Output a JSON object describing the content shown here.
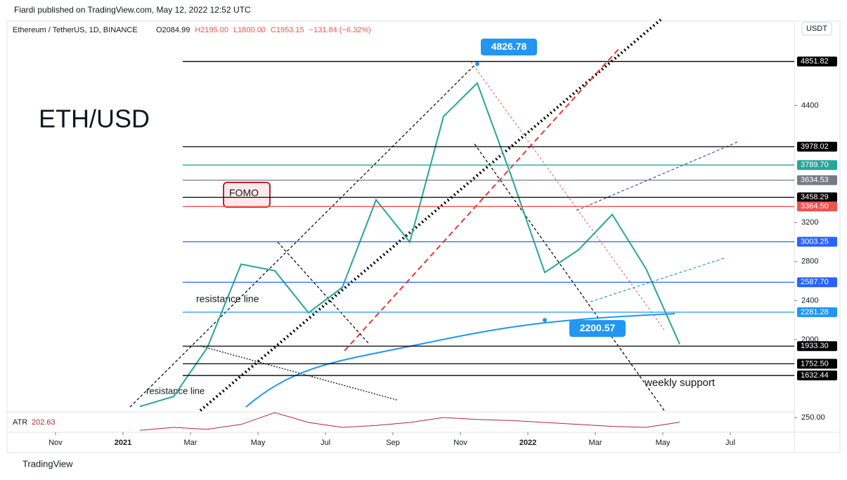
{
  "header": {
    "published": "Fiardi published on TradingView.com, May 12, 2022 12:52 UTC",
    "symbol": "Ethereum / TetherUS, 1D, BINANCE",
    "ohlc": [
      "O2084.99",
      "H2195.00",
      "L1800.00",
      "C1953.15",
      "−131.84 (−6.32%)"
    ],
    "currency": "USDT",
    "brand": "TradingView"
  },
  "chart_data": {
    "type": "line",
    "x": [
      "2021-01",
      "2021-02",
      "2021-03",
      "2021-04",
      "2021-05",
      "2021-06",
      "2021-07",
      "2021-08",
      "2021-09",
      "2021-10",
      "2021-11",
      "2021-12",
      "2022-01",
      "2022-02",
      "2022-03",
      "2022-04",
      "2022-05"
    ],
    "series": [
      {
        "name": "ETH/USDT",
        "color": "#26a69a",
        "values": [
          1314,
          1417,
          1918,
          2773,
          2706,
          2275,
          2536,
          3433,
          3000,
          4288,
          4630,
          3683,
          2688,
          2920,
          3283,
          2727,
          1953
        ]
      },
      {
        "name": "ATR",
        "axis": "y2",
        "color": "#b22833",
        "values": [
          120,
          150,
          130,
          180,
          300,
          200,
          150,
          170,
          200,
          250,
          230,
          220,
          200,
          180,
          160,
          150,
          203
        ]
      }
    ],
    "indicator_value": 202.63,
    "ylim": [
      1273,
      5266
    ],
    "yticks": [
      2000,
      2400,
      2800,
      3200,
      4400
    ],
    "y2lim": [
      100,
      300
    ],
    "y2ticks": [
      {
        "value": 250,
        "label": "250.00"
      }
    ],
    "xticks": [
      {
        "value": "2020-11",
        "label": "Nov"
      },
      {
        "value": "2021-01",
        "label": "2021"
      },
      {
        "value": "2021-03",
        "label": "Mar"
      },
      {
        "value": "2021-05",
        "label": "May"
      },
      {
        "value": "2021-07",
        "label": "Jul"
      },
      {
        "value": "2021-09",
        "label": "Sep"
      },
      {
        "value": "2021-11",
        "label": "Nov"
      },
      {
        "value": "2022-01",
        "label": "2022"
      },
      {
        "value": "2022-03",
        "label": "Mar"
      },
      {
        "value": "2022-05",
        "label": "May"
      },
      {
        "value": "2022-07",
        "label": "Jul"
      }
    ],
    "levels": [
      {
        "value": 4851.82,
        "label": "4851.82",
        "color": "#000000"
      },
      {
        "value": 3978.02,
        "label": "3978.02",
        "color": "#000000"
      },
      {
        "value": 3789.7,
        "label": "3789.70",
        "color": "#26a69a"
      },
      {
        "value": 3634.53,
        "label": "3634.53",
        "color": "#787b86"
      },
      {
        "value": 3458.29,
        "label": "3458.29",
        "color": "#000000"
      },
      {
        "value": 3364.5,
        "label": "3364.50",
        "color": "#ef5350"
      },
      {
        "value": 3003.25,
        "label": "3003.25",
        "color": "#2962ff"
      },
      {
        "value": 2587.7,
        "label": "2587.70",
        "color": "#2962ff"
      },
      {
        "value": 2281.28,
        "label": "2281.28",
        "color": "#2196f3"
      },
      {
        "value": 1933.3,
        "label": "1933.30",
        "color": "#000000"
      },
      {
        "value": 1752.5,
        "label": "1752.50",
        "color": "#000000"
      },
      {
        "value": 1632.44,
        "label": "1632.44",
        "color": "#000000"
      }
    ],
    "callouts": [
      {
        "value": 4826.78,
        "x": "2021-11"
      },
      {
        "value": 2200.57,
        "x": "2022-01"
      }
    ],
    "annotations": [
      "ETH/USD",
      "FOMO",
      "resistance line",
      "resistance line",
      "weekly support"
    ]
  }
}
